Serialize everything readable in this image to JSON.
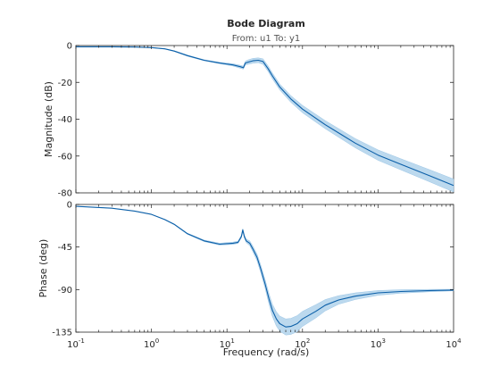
{
  "chart_data": {
    "type": "line",
    "title": "Bode Diagram",
    "subtitle": "From: u1  To: y1",
    "xlabel": "Frequency  (rad/s)",
    "xscale": "log",
    "xlim": [
      0.1,
      10000
    ],
    "x_tick_base": "10",
    "x_tick_exponents": [
      "-1",
      "0",
      "1",
      "2",
      "3",
      "4"
    ],
    "grid": false,
    "colors": {
      "line": "#0b5fa8",
      "band": "#bcd9ee",
      "axis": "#262626"
    },
    "subplots": [
      {
        "name": "magnitude",
        "ylabel": "Magnitude (dB)",
        "ylim": [
          -80,
          0
        ],
        "y_ticks": [
          "0",
          "-20",
          "-40",
          "-60",
          "-80"
        ],
        "x": [
          0.1,
          0.3,
          0.6,
          1,
          1.5,
          2,
          3,
          5,
          8,
          12,
          15,
          16.5,
          17.5,
          19,
          22,
          26,
          30,
          35,
          40,
          50,
          70,
          100,
          200,
          500,
          1000,
          2000,
          5000,
          10000
        ],
        "y": [
          -0.7,
          -0.7,
          -0.8,
          -1.1,
          -1.8,
          -3.0,
          -5.5,
          -8.0,
          -9.5,
          -10.5,
          -11.5,
          -12.0,
          -9.5,
          -9.0,
          -8.3,
          -8.0,
          -8.7,
          -12.5,
          -16.5,
          -22.5,
          -29.0,
          -34.5,
          -43.0,
          -53.0,
          -59.5,
          -64.5,
          -71.0,
          -76.0
        ],
        "band_half_width": [
          0,
          0,
          0,
          0.1,
          0.1,
          0.2,
          0.3,
          0.3,
          0.4,
          0.6,
          0.8,
          0.8,
          1.0,
          1.2,
          1.3,
          1.3,
          1.5,
          1.5,
          1.6,
          1.6,
          1.8,
          2.0,
          2.2,
          2.5,
          2.8,
          3.0,
          3.3,
          3.5
        ]
      },
      {
        "name": "phase",
        "ylabel": "Phase (deg)",
        "ylim": [
          -135,
          0
        ],
        "y_ticks": [
          "0",
          "-45",
          "-90",
          "-135"
        ],
        "x": [
          0.1,
          0.3,
          0.6,
          1,
          1.5,
          2,
          3,
          5,
          8,
          12,
          14,
          15.5,
          16.2,
          17,
          18,
          20,
          22,
          25,
          28,
          32,
          36,
          40,
          45,
          50,
          60,
          70,
          85,
          100,
          150,
          200,
          300,
          500,
          1000,
          2000,
          5000,
          10000
        ],
        "y": [
          -2.0,
          -4.0,
          -7.0,
          -10.5,
          -16.0,
          -21.0,
          -31.0,
          -38.5,
          -42.0,
          -41.0,
          -40.0,
          -34.0,
          -27.0,
          -34.0,
          -38.5,
          -41.0,
          -47.0,
          -56.0,
          -68.0,
          -84.0,
          -100.0,
          -112.0,
          -121.0,
          -126.0,
          -129.5,
          -129.0,
          -126.0,
          -121.0,
          -113.0,
          -106.5,
          -101.0,
          -97.0,
          -93.5,
          -92.0,
          -91.0,
          -90.5
        ],
        "band_half_width": [
          0,
          0,
          0,
          0,
          0.3,
          0.4,
          0.6,
          0.8,
          1.0,
          1.2,
          1.2,
          1.5,
          1.5,
          1.5,
          1.8,
          2.5,
          3.0,
          3.5,
          4.0,
          4.5,
          5.5,
          6.5,
          7.5,
          8.0,
          8.5,
          8.5,
          8.5,
          8.0,
          7.0,
          6.0,
          4.5,
          3.5,
          2.5,
          1.8,
          1.2,
          0.8
        ]
      }
    ]
  }
}
